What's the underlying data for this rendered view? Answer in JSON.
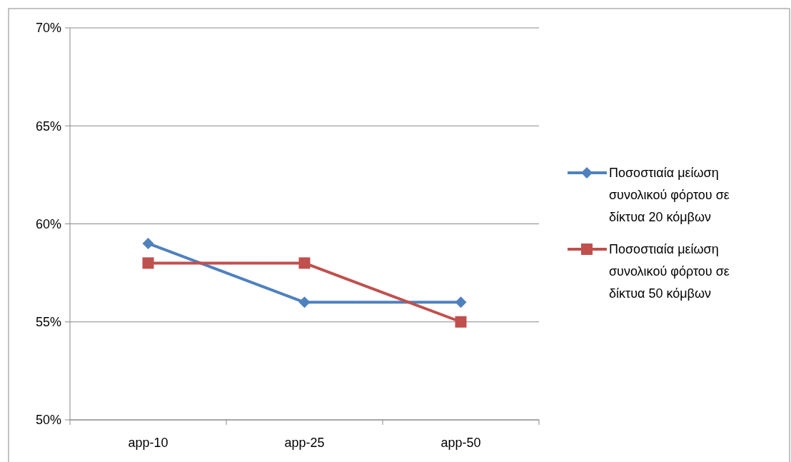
{
  "chart_data": {
    "type": "line",
    "categories": [
      "app-10",
      "app-25",
      "app-50"
    ],
    "series": [
      {
        "name": "Ποσοστιαία μείωση συνολικού φόρτου σε δίκτυα 20 κόμβων",
        "color": "#4f81bd",
        "values": [
          59,
          56,
          56
        ],
        "marker": "diamond"
      },
      {
        "name": "Ποσοστιαία μείωση συνολικού φόρτου σε δίκτυα 50 κόμβων",
        "color": "#c0504d",
        "values": [
          58,
          58,
          55
        ],
        "marker": "square"
      }
    ],
    "ylim": [
      50,
      70
    ],
    "yticks": [
      {
        "value": 50,
        "label": "50%"
      },
      {
        "value": 55,
        "label": "55%"
      },
      {
        "value": 60,
        "label": "60%"
      },
      {
        "value": 65,
        "label": "65%"
      },
      {
        "value": 70,
        "label": "70%"
      }
    ],
    "grid": "y",
    "legend": "right",
    "line_style": "solid"
  }
}
